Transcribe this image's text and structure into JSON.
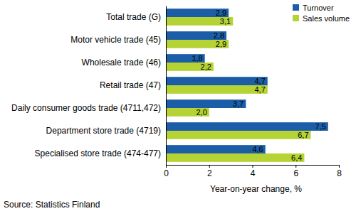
{
  "chart_data": {
    "type": "bar",
    "orientation": "horizontal",
    "categories": [
      "Total trade (G)",
      "Motor vehicle trade (45)",
      "Wholesale trade (46)",
      "Retail trade (47)",
      "Daily consumer goods trade (4711,472)",
      "Department store trade (4719)",
      "Specialised store trade (474-477)"
    ],
    "series": [
      {
        "name": "Turnover",
        "color": "#1b5ea7",
        "values": [
          2.9,
          2.8,
          1.8,
          4.7,
          3.7,
          7.5,
          4.6
        ],
        "value_labels": [
          "2,9",
          "2,8",
          "1,8",
          "4,7",
          "3,7",
          "7,5",
          "4,6"
        ]
      },
      {
        "name": "Sales volume",
        "color": "#b5d334",
        "values": [
          3.1,
          2.9,
          2.2,
          4.7,
          2.0,
          6.7,
          6.4
        ],
        "value_labels": [
          "3,1",
          "2,9",
          "2,2",
          "4,7",
          "2,0",
          "6,7",
          "6,4"
        ]
      }
    ],
    "xlim": [
      0,
      8
    ],
    "xticks": [
      0,
      2,
      4,
      6,
      8
    ],
    "xlabel": "Year-on-year change, %",
    "source": "Source: Statistics Finland",
    "legend": "top-right",
    "data_labels": true,
    "grid": false
  }
}
